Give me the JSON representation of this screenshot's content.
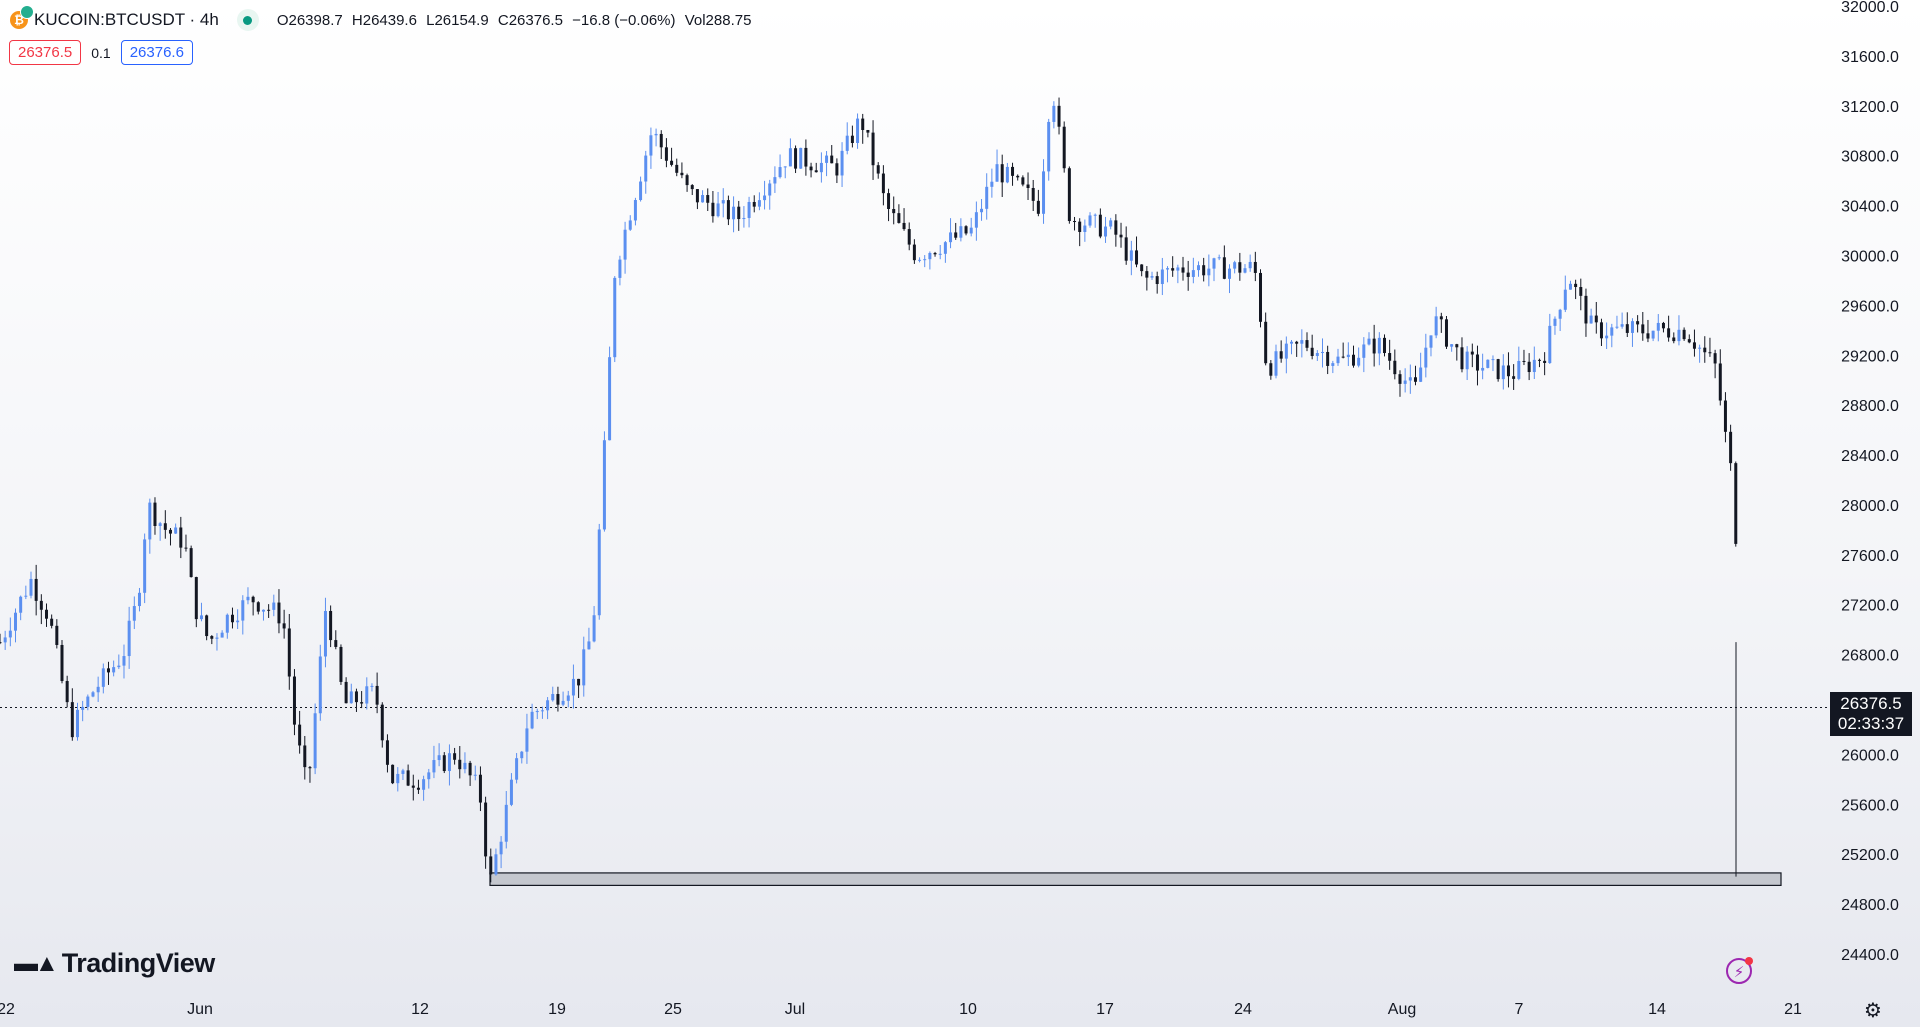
{
  "header": {
    "symbol": "KUCOIN:BTCUSDT · 4h",
    "open": "O26398.7",
    "high": "H26439.6",
    "low": "L26154.9",
    "close": "C26376.5",
    "change": "−16.8 (−0.06%)",
    "volume": "Vol288.75"
  },
  "quote": {
    "sell": "26376.5",
    "spread": "0.1",
    "buy": "26376.6"
  },
  "last_price": {
    "price": "26376.5",
    "countdown": "02:33:37"
  },
  "branding": {
    "logo_text": "TradingView"
  },
  "colors": {
    "up": "#5b8ff0",
    "down": "#131722",
    "zone_fill": "#c4c7ce",
    "zone_border": "#131722",
    "last_line": "#131722"
  },
  "icons": {
    "symbol": "bitcoin-icon",
    "status": "market-open-dot-icon",
    "alert": "lightning-icon",
    "settings": "gear-icon"
  },
  "chart_data": {
    "type": "candlestick",
    "symbol": "KUCOIN:BTCUSDT",
    "interval": "4h",
    "y_ticks": [
      "32000.0",
      "31600.0",
      "31200.0",
      "30800.0",
      "30400.0",
      "30000.0",
      "29600.0",
      "29200.0",
      "28800.0",
      "28400.0",
      "28000.0",
      "27600.0",
      "27200.0",
      "26800.0",
      "26400.0",
      "26000.0",
      "25600.0",
      "25200.0",
      "24800.0",
      "24400.0"
    ],
    "ylim": [
      24100,
      32050
    ],
    "x_ticks": [
      "22",
      "Jun",
      "12",
      "19",
      "25",
      "Jul",
      "10",
      "17",
      "24",
      "Aug",
      "7",
      "14",
      "21"
    ],
    "last_price": 26376.5,
    "support_zone": [
      24950,
      25030
    ],
    "price_path": [
      {
        "x": 0,
        "p": 26900
      },
      {
        "x": 25,
        "p": 27400
      },
      {
        "x": 40,
        "p": 27100
      },
      {
        "x": 58,
        "p": 26200
      },
      {
        "x": 75,
        "p": 26500
      },
      {
        "x": 100,
        "p": 26800
      },
      {
        "x": 112,
        "p": 27250
      },
      {
        "x": 120,
        "p": 28000
      },
      {
        "x": 135,
        "p": 27800
      },
      {
        "x": 150,
        "p": 27700
      },
      {
        "x": 158,
        "p": 27200
      },
      {
        "x": 170,
        "p": 26900
      },
      {
        "x": 185,
        "p": 27100
      },
      {
        "x": 205,
        "p": 27250
      },
      {
        "x": 230,
        "p": 27100
      },
      {
        "x": 240,
        "p": 26200
      },
      {
        "x": 250,
        "p": 25700
      },
      {
        "x": 265,
        "p": 27200
      },
      {
        "x": 280,
        "p": 26400
      },
      {
        "x": 305,
        "p": 26500
      },
      {
        "x": 318,
        "p": 25800
      },
      {
        "x": 340,
        "p": 25800
      },
      {
        "x": 370,
        "p": 26000
      },
      {
        "x": 390,
        "p": 25700
      },
      {
        "x": 398,
        "p": 24950
      },
      {
        "x": 415,
        "p": 25700
      },
      {
        "x": 430,
        "p": 26300
      },
      {
        "x": 455,
        "p": 26500
      },
      {
        "x": 470,
        "p": 26600
      },
      {
        "x": 482,
        "p": 27000
      },
      {
        "x": 490,
        "p": 28200
      },
      {
        "x": 500,
        "p": 29900
      },
      {
        "x": 530,
        "p": 31000
      },
      {
        "x": 560,
        "p": 30500
      },
      {
        "x": 600,
        "p": 30300
      },
      {
        "x": 640,
        "p": 30800
      },
      {
        "x": 680,
        "p": 30700
      },
      {
        "x": 700,
        "p": 31100
      },
      {
        "x": 720,
        "p": 30400
      },
      {
        "x": 745,
        "p": 30000
      },
      {
        "x": 790,
        "p": 30200
      },
      {
        "x": 810,
        "p": 30700
      },
      {
        "x": 845,
        "p": 30400
      },
      {
        "x": 855,
        "p": 31400
      },
      {
        "x": 870,
        "p": 30300
      },
      {
        "x": 905,
        "p": 30200
      },
      {
        "x": 930,
        "p": 29800
      },
      {
        "x": 960,
        "p": 29900
      },
      {
        "x": 1000,
        "p": 29900
      },
      {
        "x": 1020,
        "p": 29900
      },
      {
        "x": 1030,
        "p": 29100
      },
      {
        "x": 1060,
        "p": 29300
      },
      {
        "x": 1090,
        "p": 29150
      },
      {
        "x": 1120,
        "p": 29300
      },
      {
        "x": 1150,
        "p": 28900
      },
      {
        "x": 1165,
        "p": 29500
      },
      {
        "x": 1190,
        "p": 29150
      },
      {
        "x": 1230,
        "p": 29050
      },
      {
        "x": 1255,
        "p": 29200
      },
      {
        "x": 1275,
        "p": 29850
      },
      {
        "x": 1295,
        "p": 29400
      },
      {
        "x": 1340,
        "p": 29400
      },
      {
        "x": 1370,
        "p": 29400
      },
      {
        "x": 1395,
        "p": 29100
      },
      {
        "x": 1402,
        "p": 28600
      },
      {
        "x": 1410,
        "p": 28100
      },
      {
        "x": 1415,
        "p": 26700
      },
      {
        "x": 1422,
        "p": 26376
      }
    ]
  }
}
